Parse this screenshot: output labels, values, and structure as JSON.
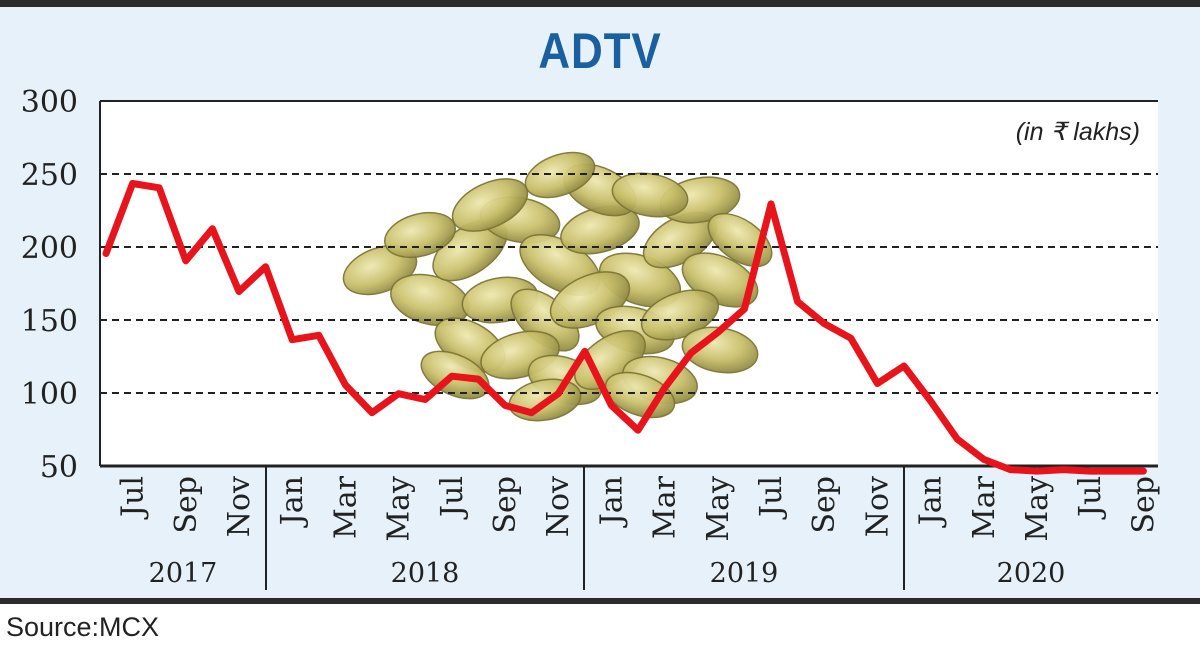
{
  "source_text": "Source:MCX",
  "chart_data": {
    "type": "line",
    "title": "ADTV",
    "unit_note": "(in ₹ lakhs)",
    "ylim": [
      50,
      300
    ],
    "yticks": [
      300,
      250,
      200,
      150,
      100,
      50
    ],
    "grid": "dashed horizontal",
    "line_color": "#e8141b",
    "x_tick_labels": [
      "Jul",
      "Sep",
      "Nov",
      "Jan",
      "Mar",
      "May",
      "Jul",
      "Sep",
      "Nov",
      "Jan",
      "Mar",
      "May",
      "Jul",
      "Sep",
      "Nov",
      "Jan",
      "Mar",
      "May",
      "Jul",
      "Sep"
    ],
    "x_tick_months": [
      "2017-07",
      "2017-09",
      "2017-11",
      "2018-01",
      "2018-03",
      "2018-05",
      "2018-07",
      "2018-09",
      "2018-11",
      "2019-01",
      "2019-03",
      "2019-05",
      "2019-07",
      "2019-09",
      "2019-11",
      "2020-01",
      "2020-03",
      "2020-05",
      "2020-07",
      "2020-09"
    ],
    "years": [
      {
        "label": "2017",
        "start": "2017-06",
        "end": "2017-12"
      },
      {
        "label": "2018",
        "start": "2018-01",
        "end": "2018-12"
      },
      {
        "label": "2019",
        "start": "2019-01",
        "end": "2019-12"
      },
      {
        "label": "2020",
        "start": "2020-01",
        "end": "2020-09"
      }
    ],
    "series": [
      {
        "x": [
          "2017-06",
          "2017-07",
          "2017-08",
          "2017-09",
          "2017-10",
          "2017-11",
          "2017-12",
          "2018-01",
          "2018-02",
          "2018-03",
          "2018-04",
          "2018-05",
          "2018-06",
          "2018-07",
          "2018-08",
          "2018-09",
          "2018-10",
          "2018-11",
          "2018-12",
          "2019-01",
          "2019-02",
          "2019-03",
          "2019-04",
          "2019-05",
          "2019-06",
          "2019-07",
          "2019-08",
          "2019-09",
          "2019-10",
          "2019-11",
          "2019-12",
          "2020-01",
          "2020-02",
          "2020-03",
          "2020-04",
          "2020-05",
          "2020-06",
          "2020-07",
          "2020-08",
          "2020-09"
        ],
        "values": [
          201,
          249,
          246,
          196,
          218,
          175,
          192,
          142,
          145,
          111,
          92,
          105,
          101,
          117,
          115,
          97,
          92,
          105,
          134,
          97,
          80,
          109,
          133,
          147,
          163,
          235,
          168,
          153,
          143,
          112,
          124,
          100,
          74,
          60,
          53,
          52,
          53,
          52,
          52,
          52
        ]
      }
    ]
  }
}
